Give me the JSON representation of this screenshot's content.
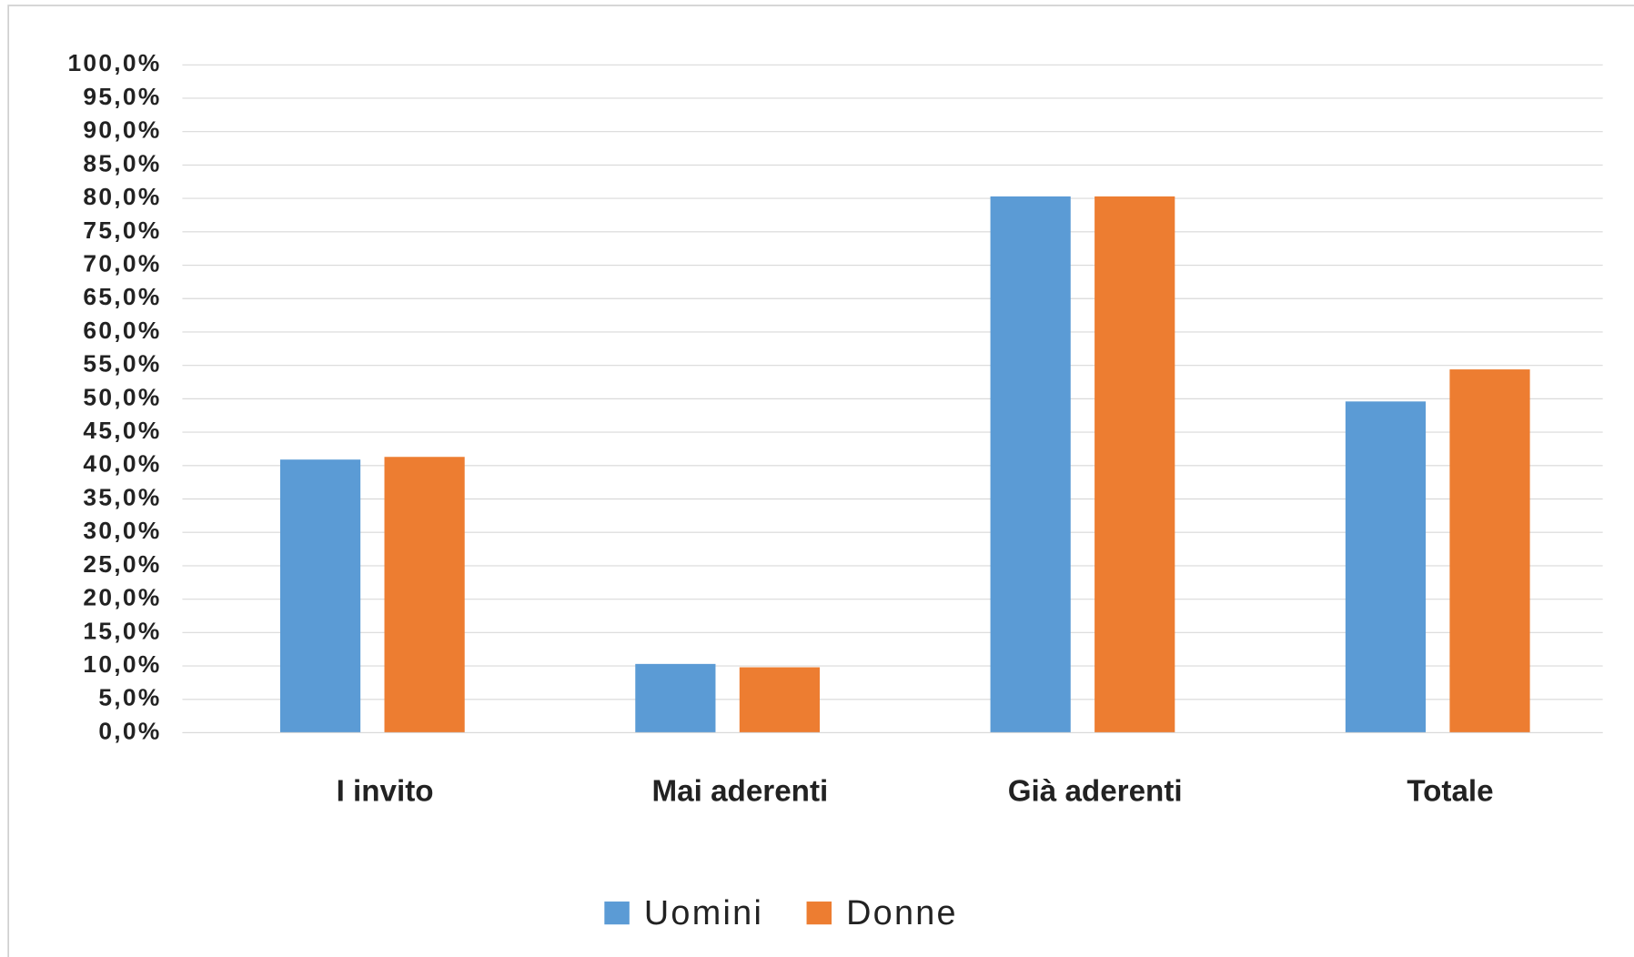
{
  "chart_data": {
    "type": "bar",
    "categories": [
      "I invito",
      "Mai aderenti",
      "Già aderenti",
      "Totale"
    ],
    "series": [
      {
        "name": "Uomini",
        "color": "#5b9bd5",
        "values": [
          40.9,
          10.3,
          80.3,
          49.6
        ]
      },
      {
        "name": "Donne",
        "color": "#ed7d31",
        "values": [
          41.3,
          9.8,
          80.3,
          54.4
        ]
      }
    ],
    "ylim": [
      0,
      100
    ],
    "yticks": [
      {
        "value": 0,
        "label": "0,0%"
      },
      {
        "value": 5,
        "label": "5,0%"
      },
      {
        "value": 10,
        "label": "10,0%"
      },
      {
        "value": 15,
        "label": "15,0%"
      },
      {
        "value": 20,
        "label": "20,0%"
      },
      {
        "value": 25,
        "label": "25,0%"
      },
      {
        "value": 30,
        "label": "30,0%"
      },
      {
        "value": 35,
        "label": "35,0%"
      },
      {
        "value": 40,
        "label": "40,0%"
      },
      {
        "value": 45,
        "label": "45,0%"
      },
      {
        "value": 50,
        "label": "50,0%"
      },
      {
        "value": 55,
        "label": "55,0%"
      },
      {
        "value": 60,
        "label": "60,0%"
      },
      {
        "value": 65,
        "label": "65,0%"
      },
      {
        "value": 70,
        "label": "70,0%"
      },
      {
        "value": 75,
        "label": "75,0%"
      },
      {
        "value": 80,
        "label": "80,0%"
      },
      {
        "value": 85,
        "label": "85,0%"
      },
      {
        "value": 90,
        "label": "90,0%"
      },
      {
        "value": 95,
        "label": "95,0%"
      },
      {
        "value": 100,
        "label": "100,0%"
      }
    ],
    "grid": true,
    "legend": "bottom"
  }
}
